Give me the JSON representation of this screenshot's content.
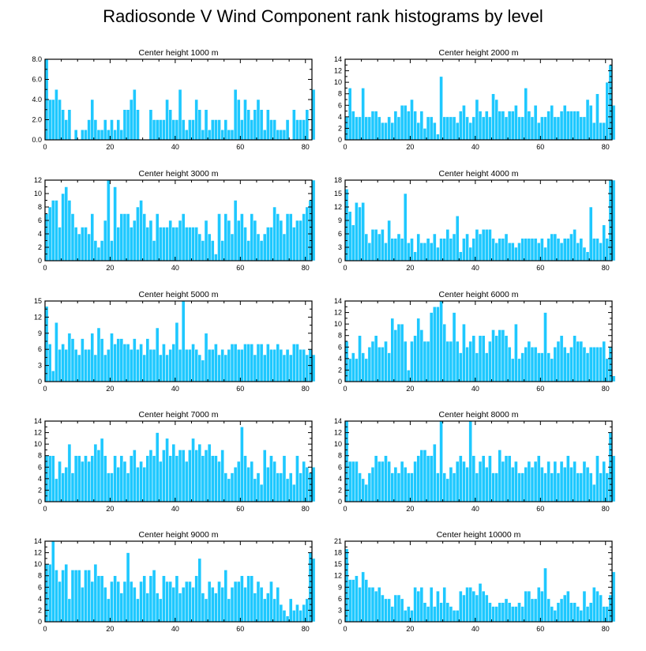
{
  "title": "Radiosonde V Wind Component rank histograms by level",
  "bar_color": "#1ec8ff",
  "bar_edge_color": "#ffffff",
  "chart_data": [
    {
      "type": "bar",
      "title": "Center height 1000 m",
      "xlim": [
        0,
        82
      ],
      "xticks": [
        0,
        20,
        40,
        60,
        80
      ],
      "ylim": [
        0,
        8
      ],
      "yticks": [
        0,
        2,
        4,
        6,
        8
      ],
      "ytick_labels": [
        "0.0",
        "2.0",
        "4.0",
        "6.0",
        "8.0"
      ],
      "values": [
        8,
        4,
        4,
        5,
        4,
        3,
        2,
        3,
        0,
        1,
        0,
        1,
        1,
        2,
        4,
        2,
        1,
        1,
        2,
        1,
        2,
        1,
        2,
        1,
        3,
        3,
        4,
        5,
        3,
        0,
        0,
        0,
        3,
        2,
        2,
        2,
        2,
        4,
        3,
        2,
        2,
        5,
        2,
        1,
        2,
        2,
        4,
        3,
        1,
        3,
        1,
        2,
        2,
        2,
        1,
        2,
        1,
        1,
        5,
        4,
        2,
        4,
        3,
        2,
        3,
        4,
        3,
        1,
        3,
        2,
        2,
        1,
        1,
        1,
        2,
        0,
        3,
        2,
        2,
        2,
        3,
        0,
        5
      ]
    },
    {
      "type": "bar",
      "title": "Center height 2000 m",
      "xlim": [
        0,
        82
      ],
      "xticks": [
        0,
        20,
        40,
        60,
        80
      ],
      "ylim": [
        0,
        14
      ],
      "yticks": [
        0,
        2,
        4,
        6,
        8,
        10,
        12,
        14
      ],
      "ytick_labels": [
        "0",
        "2",
        "4",
        "6",
        "8",
        "10",
        "12",
        "14"
      ],
      "values": [
        4,
        9,
        5,
        4,
        4,
        9,
        4,
        4,
        5,
        5,
        4,
        3,
        3,
        4,
        3,
        5,
        4,
        6,
        6,
        5,
        7,
        5,
        3,
        5,
        2,
        4,
        4,
        3,
        1,
        11,
        4,
        4,
        4,
        4,
        3,
        5,
        6,
        4,
        3,
        4,
        7,
        5,
        4,
        5,
        4,
        8,
        7,
        5,
        5,
        4,
        5,
        5,
        6,
        4,
        4,
        9,
        5,
        4,
        6,
        3,
        4,
        4,
        5,
        6,
        4,
        4,
        5,
        6,
        5,
        5,
        5,
        5,
        4,
        4,
        7,
        6,
        3,
        8,
        3,
        3,
        10,
        13,
        6
      ]
    },
    {
      "type": "bar",
      "title": "Center height 3000 m",
      "xlim": [
        0,
        82
      ],
      "xticks": [
        0,
        20,
        40,
        60,
        80
      ],
      "ylim": [
        0,
        12
      ],
      "yticks": [
        0,
        2,
        4,
        6,
        8,
        10,
        12
      ],
      "ytick_labels": [
        "0",
        "2",
        "4",
        "6",
        "8",
        "10",
        "12"
      ],
      "values": [
        7,
        8,
        9,
        9,
        5,
        10,
        11,
        9,
        7,
        5,
        4,
        5,
        5,
        4,
        7,
        3,
        2,
        3,
        6,
        12,
        3,
        11,
        5,
        7,
        7,
        7,
        5,
        6,
        8,
        9,
        7,
        5,
        6,
        3,
        7,
        5,
        5,
        5,
        6,
        5,
        5,
        6,
        7,
        5,
        5,
        5,
        5,
        4,
        3,
        6,
        4,
        3,
        1,
        7,
        3,
        7,
        6,
        4,
        9,
        6,
        7,
        5,
        3,
        7,
        6,
        4,
        3,
        4,
        5,
        5,
        8,
        7,
        6,
        4,
        7,
        7,
        5,
        6,
        6,
        7,
        8,
        9,
        12
      ]
    },
    {
      "type": "bar",
      "title": "Center height 4000 m",
      "xlim": [
        0,
        82
      ],
      "xticks": [
        0,
        20,
        40,
        60,
        80
      ],
      "ylim": [
        0,
        18
      ],
      "yticks": [
        0,
        3,
        6,
        9,
        12,
        15,
        18
      ],
      "ytick_labels": [
        "0",
        "3",
        "6",
        "9",
        "12",
        "15",
        "18"
      ],
      "values": [
        16,
        11,
        8,
        13,
        12,
        13,
        6,
        4,
        7,
        7,
        6,
        7,
        4,
        9,
        5,
        5,
        6,
        5,
        15,
        4,
        5,
        2,
        6,
        4,
        4,
        5,
        4,
        6,
        3,
        5,
        5,
        7,
        5,
        6,
        10,
        2,
        5,
        6,
        3,
        5,
        7,
        6,
        7,
        7,
        7,
        5,
        4,
        5,
        5,
        6,
        4,
        4,
        3,
        4,
        5,
        5,
        5,
        5,
        5,
        4,
        5,
        3,
        5,
        6,
        6,
        5,
        4,
        5,
        5,
        6,
        7,
        4,
        5,
        3,
        2,
        12,
        5,
        5,
        4,
        8,
        5,
        18,
        18
      ]
    },
    {
      "type": "bar",
      "title": "Center height 5000 m",
      "xlim": [
        0,
        82
      ],
      "xticks": [
        0,
        20,
        40,
        60,
        80
      ],
      "ylim": [
        0,
        15
      ],
      "yticks": [
        0,
        3,
        6,
        9,
        12,
        15
      ],
      "ytick_labels": [
        "0",
        "3",
        "6",
        "9",
        "12",
        "15"
      ],
      "values": [
        14,
        7,
        2,
        11,
        6,
        7,
        6,
        9,
        8,
        6,
        5,
        8,
        6,
        6,
        9,
        5,
        10,
        8,
        5,
        6,
        9,
        7,
        8,
        8,
        7,
        7,
        6,
        8,
        6,
        7,
        5,
        8,
        6,
        6,
        10,
        5,
        7,
        5,
        6,
        7,
        11,
        6,
        15,
        6,
        6,
        7,
        6,
        5,
        4,
        9,
        6,
        6,
        7,
        5,
        6,
        5,
        6,
        7,
        7,
        6,
        6,
        7,
        7,
        7,
        5,
        7,
        7,
        5,
        7,
        6,
        6,
        7,
        6,
        5,
        6,
        5,
        7,
        7,
        6,
        6,
        5,
        6,
        5
      ]
    },
    {
      "type": "bar",
      "title": "Center height 6000 m",
      "xlim": [
        0,
        82
      ],
      "xticks": [
        0,
        20,
        40,
        60,
        80
      ],
      "ylim": [
        0,
        14
      ],
      "yticks": [
        0,
        2,
        4,
        6,
        8,
        10,
        12,
        14
      ],
      "ytick_labels": [
        "0",
        "2",
        "4",
        "6",
        "8",
        "10",
        "12",
        "14"
      ],
      "values": [
        7,
        4,
        5,
        4,
        8,
        5,
        4,
        6,
        7,
        8,
        6,
        6,
        7,
        5,
        11,
        9,
        10,
        10,
        7,
        2,
        7,
        8,
        11,
        9,
        7,
        7,
        12,
        13,
        13,
        14,
        10,
        7,
        7,
        12,
        7,
        5,
        10,
        6,
        7,
        8,
        5,
        8,
        8,
        5,
        7,
        9,
        8,
        9,
        9,
        8,
        6,
        4,
        10,
        4,
        5,
        6,
        7,
        6,
        6,
        5,
        5,
        12,
        5,
        4,
        6,
        7,
        8,
        6,
        5,
        6,
        8,
        7,
        7,
        6,
        5,
        6,
        6,
        6,
        6,
        7,
        4,
        6,
        1
      ]
    },
    {
      "type": "bar",
      "title": "Center height 7000 m",
      "xlim": [
        0,
        82
      ],
      "xticks": [
        0,
        20,
        40,
        60,
        80
      ],
      "ylim": [
        0,
        14
      ],
      "yticks": [
        0,
        2,
        4,
        6,
        8,
        10,
        12,
        14
      ],
      "ytick_labels": [
        "0",
        "2",
        "4",
        "6",
        "8",
        "10",
        "12",
        "14"
      ],
      "values": [
        8,
        8,
        8,
        4,
        7,
        5,
        6,
        10,
        5,
        8,
        8,
        7,
        8,
        7,
        8,
        10,
        9,
        11,
        8,
        5,
        5,
        8,
        6,
        8,
        7,
        5,
        8,
        9,
        6,
        7,
        6,
        8,
        9,
        8,
        12,
        7,
        9,
        11,
        8,
        10,
        8,
        9,
        9,
        7,
        9,
        11,
        9,
        10,
        8,
        9,
        10,
        8,
        8,
        7,
        9,
        5,
        4,
        5,
        6,
        7,
        13,
        8,
        6,
        7,
        4,
        5,
        3,
        9,
        6,
        8,
        7,
        5,
        5,
        8,
        4,
        5,
        3,
        8,
        5,
        7,
        6,
        5,
        6
      ]
    },
    {
      "type": "bar",
      "title": "Center height 8000 m",
      "xlim": [
        0,
        82
      ],
      "xticks": [
        0,
        20,
        40,
        60,
        80
      ],
      "ylim": [
        0,
        14
      ],
      "yticks": [
        0,
        2,
        4,
        6,
        8,
        10,
        12,
        14
      ],
      "ytick_labels": [
        "0",
        "2",
        "4",
        "6",
        "8",
        "10",
        "12",
        "14"
      ],
      "values": [
        14,
        7,
        7,
        7,
        5,
        4,
        3,
        5,
        6,
        8,
        7,
        7,
        8,
        7,
        5,
        6,
        5,
        7,
        6,
        5,
        5,
        7,
        8,
        9,
        9,
        8,
        8,
        10,
        5,
        14,
        5,
        4,
        6,
        5,
        7,
        8,
        7,
        6,
        14,
        8,
        5,
        7,
        8,
        6,
        8,
        5,
        5,
        9,
        7,
        8,
        8,
        6,
        7,
        5,
        5,
        6,
        7,
        6,
        7,
        8,
        6,
        5,
        7,
        5,
        7,
        5,
        7,
        6,
        8,
        6,
        7,
        5,
        5,
        7,
        6,
        5,
        3,
        8,
        5,
        7,
        5,
        12,
        8
      ]
    },
    {
      "type": "bar",
      "title": "Center height 9000 m",
      "xlim": [
        0,
        82
      ],
      "xticks": [
        0,
        20,
        40,
        60,
        80
      ],
      "ylim": [
        0,
        14
      ],
      "yticks": [
        0,
        2,
        4,
        6,
        8,
        10,
        12,
        14
      ],
      "ytick_labels": [
        "0",
        "2",
        "4",
        "6",
        "8",
        "10",
        "12",
        "14"
      ],
      "values": [
        10,
        10,
        14,
        9,
        7,
        9,
        10,
        4,
        9,
        9,
        9,
        6,
        9,
        9,
        7,
        10,
        8,
        8,
        6,
        4,
        7,
        8,
        7,
        5,
        7,
        12,
        7,
        6,
        4,
        7,
        8,
        5,
        8,
        9,
        5,
        4,
        8,
        7,
        7,
        6,
        8,
        5,
        6,
        7,
        7,
        6,
        8,
        11,
        5,
        4,
        7,
        6,
        5,
        7,
        6,
        9,
        4,
        6,
        7,
        7,
        8,
        6,
        8,
        8,
        5,
        7,
        6,
        4,
        5,
        7,
        4,
        6,
        3,
        2,
        1,
        4,
        2,
        3,
        2,
        3,
        4,
        12,
        11
      ]
    },
    {
      "type": "bar",
      "title": "Center height 10000 m",
      "xlim": [
        0,
        82
      ],
      "xticks": [
        0,
        20,
        40,
        60,
        80
      ],
      "ylim": [
        0,
        21
      ],
      "yticks": [
        0,
        3,
        6,
        9,
        12,
        15,
        18,
        21
      ],
      "ytick_labels": [
        "0",
        "3",
        "6",
        "9",
        "12",
        "15",
        "18",
        "21"
      ],
      "values": [
        19,
        11,
        11,
        12,
        9,
        13,
        11,
        9,
        9,
        8,
        9,
        7,
        6,
        6,
        4,
        7,
        7,
        6,
        3,
        4,
        3,
        9,
        8,
        9,
        5,
        4,
        9,
        4,
        8,
        5,
        9,
        5,
        4,
        3,
        3,
        8,
        7,
        9,
        9,
        8,
        7,
        10,
        8,
        7,
        5,
        4,
        4,
        5,
        5,
        6,
        5,
        4,
        4,
        5,
        4,
        8,
        8,
        6,
        6,
        9,
        8,
        14,
        6,
        4,
        3,
        5,
        6,
        7,
        8,
        5,
        5,
        4,
        3,
        8,
        4,
        5,
        9,
        8,
        7,
        4,
        4,
        7,
        13
      ]
    }
  ]
}
